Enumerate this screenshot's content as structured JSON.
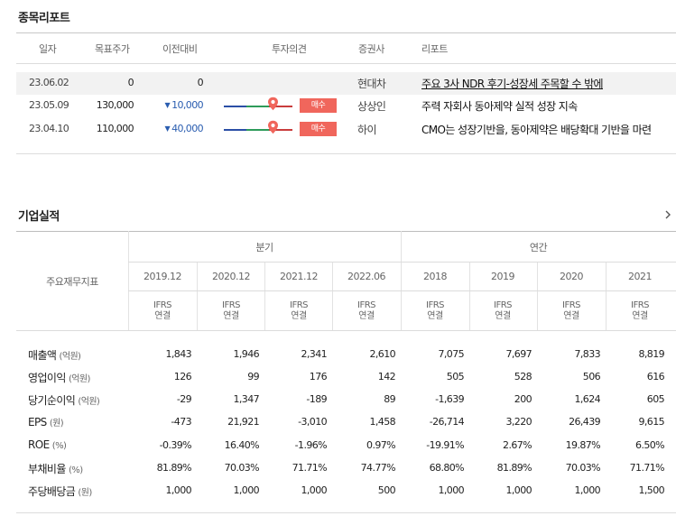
{
  "report_section": {
    "title": "종목리포트",
    "headers": [
      "일자",
      "목표주가",
      "이전대비",
      "투자의견",
      "증권사",
      "리포트"
    ],
    "rows": [
      {
        "date": "23.06.02",
        "target": "0",
        "change": "0",
        "direction": "none",
        "opinion": "",
        "broker": "현대차",
        "title": "주요 3사 NDR 후기-성장세 주목할 수 밖에",
        "highlight": true
      },
      {
        "date": "23.05.09",
        "target": "130,000",
        "change": "10,000",
        "direction": "down",
        "opinion": "매수",
        "broker": "상상인",
        "title": "주력 자회사 동아제약 실적 성장 지속",
        "highlight": false
      },
      {
        "date": "23.04.10",
        "target": "110,000",
        "change": "40,000",
        "direction": "down",
        "opinion": "매수",
        "broker": "하이",
        "title": "CMO는 성장기반을, 동아제약은 배당확대 기반을 마련",
        "highlight": false
      }
    ]
  },
  "financial_section": {
    "title": "기업실적",
    "corner_label": "주요재무지표",
    "group_quarter": "분기",
    "group_annual": "연간",
    "periods": [
      "2019.12",
      "2020.12",
      "2021.12",
      "2022.06",
      "2018",
      "2019",
      "2020",
      "2021"
    ],
    "standard": [
      "IFRS",
      "연결"
    ],
    "rows": [
      {
        "label": "매출액",
        "unit": "(억원)",
        "values": [
          "1,843",
          "1,946",
          "2,341",
          "2,610",
          "7,075",
          "7,697",
          "7,833",
          "8,819"
        ]
      },
      {
        "label": "영업이익",
        "unit": "(억원)",
        "values": [
          "126",
          "99",
          "176",
          "142",
          "505",
          "528",
          "506",
          "616"
        ]
      },
      {
        "label": "당기순이익",
        "unit": "(억원)",
        "values": [
          "-29",
          "1,347",
          "-189",
          "89",
          "-1,639",
          "200",
          "1,624",
          "605"
        ]
      },
      {
        "label": "EPS",
        "unit": "(원)",
        "values": [
          "-473",
          "21,921",
          "-3,010",
          "1,458",
          "-26,714",
          "3,220",
          "26,439",
          "9,615"
        ]
      },
      {
        "label": "ROE",
        "unit": "(%)",
        "values": [
          "-0.39%",
          "16.40%",
          "-1.96%",
          "0.97%",
          "-19.91%",
          "2.67%",
          "19.87%",
          "6.50%"
        ]
      },
      {
        "label": "부채비율",
        "unit": "(%)",
        "values": [
          "81.89%",
          "70.03%",
          "71.71%",
          "74.77%",
          "68.80%",
          "81.89%",
          "70.03%",
          "71.71%"
        ]
      },
      {
        "label": "주당배당금",
        "unit": "(원)",
        "values": [
          "1,000",
          "1,000",
          "1,000",
          "500",
          "1,000",
          "1,000",
          "1,000",
          "1,500"
        ]
      }
    ]
  },
  "colors": {
    "down": "#2a5db0",
    "badge": "#f0665c",
    "pin": "#f0665c"
  }
}
